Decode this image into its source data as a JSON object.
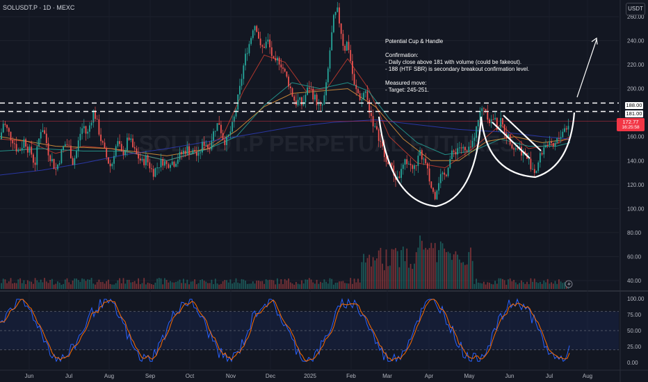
{
  "header": {
    "symbol_label": "SOLUSDT.P · 1D · MEXC"
  },
  "currency": "USDT",
  "watermark": "SOLUSDT.P PERPETUAL FUTURES",
  "annotation": {
    "title": "Potential Cup & Handle",
    "lines": [
      "Confirmation:",
      "- Daily close above 181 with volume (could be fakeout).",
      "- 188 (HTF SBR) is secondary breakout confirmation level.",
      "",
      "Measured move:",
      "- Target: 245-251."
    ]
  },
  "price_tags": {
    "level_188": "188.00",
    "level_181": "181.00",
    "last_price": "172.77",
    "countdown": "16:25:58"
  },
  "chart_data": {
    "type": "line",
    "price_axis": {
      "ticks": [
        40,
        60,
        80,
        100,
        120,
        140,
        160,
        180,
        200,
        220,
        240,
        260
      ]
    },
    "price_axis_labels": [
      "40.00",
      "60.00",
      "80.00",
      "100.00",
      "120.00",
      "140.00",
      "160.00",
      "180.00",
      "200.00",
      "220.00",
      "240.00",
      "260.00"
    ],
    "time_axis_labels": [
      "Jun",
      "Jul",
      "Aug",
      "Sep",
      "Oct",
      "Nov",
      "Dec",
      "2025",
      "Feb",
      "Mar",
      "Apr",
      "May",
      "Jun",
      "Jul",
      "Aug"
    ],
    "horizontal_levels": [
      188,
      181
    ],
    "last_price": 172.77,
    "price_series": [
      [
        0,
        158
      ],
      [
        5,
        172
      ],
      [
        10,
        166
      ],
      [
        15,
        160
      ],
      [
        20,
        156
      ],
      [
        25,
        148
      ],
      [
        30,
        150
      ],
      [
        35,
        158
      ],
      [
        40,
        150
      ],
      [
        45,
        146
      ],
      [
        50,
        136
      ],
      [
        55,
        155
      ],
      [
        60,
        170
      ],
      [
        65,
        160
      ],
      [
        70,
        146
      ],
      [
        75,
        140
      ],
      [
        80,
        132
      ],
      [
        85,
        140
      ],
      [
        90,
        150
      ],
      [
        95,
        155
      ],
      [
        100,
        150
      ],
      [
        105,
        138
      ],
      [
        110,
        148
      ],
      [
        115,
        162
      ],
      [
        120,
        170
      ],
      [
        125,
        160
      ],
      [
        130,
        172
      ],
      [
        135,
        182
      ],
      [
        140,
        170
      ],
      [
        145,
        158
      ],
      [
        150,
        148
      ],
      [
        155,
        140
      ],
      [
        160,
        134
      ],
      [
        165,
        150
      ],
      [
        170,
        155
      ],
      [
        175,
        145
      ],
      [
        180,
        150
      ],
      [
        185,
        160
      ],
      [
        190,
        152
      ],
      [
        195,
        146
      ],
      [
        200,
        142
      ],
      [
        205,
        138
      ],
      [
        210,
        142
      ],
      [
        215,
        136
      ],
      [
        220,
        130
      ],
      [
        225,
        134
      ],
      [
        230,
        138
      ],
      [
        235,
        140
      ],
      [
        240,
        136
      ],
      [
        245,
        140
      ],
      [
        250,
        138
      ],
      [
        255,
        142
      ],
      [
        260,
        145
      ],
      [
        265,
        148
      ],
      [
        270,
        150
      ],
      [
        275,
        146
      ],
      [
        280,
        148
      ],
      [
        285,
        142
      ],
      [
        290,
        152
      ],
      [
        295,
        156
      ],
      [
        300,
        150
      ],
      [
        305,
        160
      ],
      [
        310,
        168
      ],
      [
        315,
        172
      ],
      [
        320,
        160
      ],
      [
        325,
        155
      ],
      [
        330,
        162
      ],
      [
        335,
        170
      ],
      [
        340,
        185
      ],
      [
        345,
        200
      ],
      [
        350,
        218
      ],
      [
        355,
        232
      ],
      [
        360,
        240
      ],
      [
        365,
        255
      ],
      [
        370,
        250
      ],
      [
        375,
        232
      ],
      [
        380,
        236
      ],
      [
        385,
        240
      ],
      [
        390,
        230
      ],
      [
        395,
        218
      ],
      [
        400,
        225
      ],
      [
        405,
        220
      ],
      [
        410,
        212
      ],
      [
        415,
        205
      ],
      [
        420,
        196
      ],
      [
        425,
        188
      ],
      [
        430,
        190
      ],
      [
        435,
        186
      ],
      [
        440,
        196
      ],
      [
        445,
        202
      ],
      [
        450,
        195
      ],
      [
        455,
        190
      ],
      [
        460,
        182
      ],
      [
        465,
        188
      ],
      [
        470,
        205
      ],
      [
        475,
        235
      ],
      [
        480,
        258
      ],
      [
        485,
        265
      ],
      [
        490,
        250
      ],
      [
        495,
        232
      ],
      [
        500,
        240
      ],
      [
        505,
        220
      ],
      [
        510,
        200
      ],
      [
        515,
        196
      ],
      [
        520,
        190
      ],
      [
        525,
        200
      ],
      [
        530,
        185
      ],
      [
        535,
        175
      ],
      [
        540,
        165
      ],
      [
        545,
        160
      ],
      [
        550,
        150
      ],
      [
        555,
        138
      ],
      [
        560,
        140
      ],
      [
        565,
        130
      ],
      [
        570,
        125
      ],
      [
        575,
        128
      ],
      [
        580,
        135
      ],
      [
        585,
        140
      ],
      [
        590,
        136
      ],
      [
        595,
        132
      ],
      [
        600,
        140
      ],
      [
        605,
        146
      ],
      [
        610,
        140
      ],
      [
        615,
        130
      ],
      [
        620,
        118
      ],
      [
        625,
        110
      ],
      [
        630,
        122
      ],
      [
        635,
        130
      ],
      [
        640,
        126
      ],
      [
        645,
        138
      ],
      [
        650,
        145
      ],
      [
        655,
        148
      ],
      [
        660,
        152
      ],
      [
        665,
        150
      ],
      [
        670,
        146
      ],
      [
        675,
        148
      ],
      [
        680,
        155
      ],
      [
        685,
        170
      ],
      [
        690,
        178
      ],
      [
        695,
        186
      ],
      [
        700,
        180
      ],
      [
        705,
        172
      ],
      [
        710,
        176
      ],
      [
        715,
        168
      ],
      [
        720,
        172
      ],
      [
        725,
        166
      ],
      [
        730,
        160
      ],
      [
        735,
        156
      ],
      [
        740,
        150
      ],
      [
        745,
        152
      ],
      [
        750,
        148
      ],
      [
        755,
        145
      ],
      [
        760,
        140
      ],
      [
        765,
        135
      ],
      [
        770,
        130
      ],
      [
        775,
        140
      ],
      [
        780,
        148
      ],
      [
        785,
        155
      ],
      [
        790,
        152
      ],
      [
        795,
        150
      ],
      [
        800,
        155
      ],
      [
        805,
        160
      ],
      [
        810,
        166
      ],
      [
        815,
        168
      ],
      [
        820,
        172.77
      ]
    ],
    "ma_series": [
      {
        "name": "",
        "color": "#cc3d2f",
        "values": [
          [
            0,
            158
          ],
          [
            40,
            156
          ],
          [
            80,
            146
          ],
          [
            120,
            152
          ],
          [
            160,
            150
          ],
          [
            200,
            145
          ],
          [
            240,
            140
          ],
          [
            280,
            146
          ],
          [
            320,
            160
          ],
          [
            350,
            198
          ],
          [
            380,
            228
          ],
          [
            410,
            222
          ],
          [
            440,
            198
          ],
          [
            470,
            200
          ],
          [
            500,
            225
          ],
          [
            530,
            200
          ],
          [
            560,
            160
          ],
          [
            600,
            138
          ],
          [
            640,
            134
          ],
          [
            680,
            150
          ],
          [
            720,
            170
          ],
          [
            760,
            150
          ],
          [
            800,
            154
          ],
          [
            820,
            160
          ]
        ]
      },
      {
        "name": "",
        "color": "#26a69a",
        "values": [
          [
            0,
            148
          ],
          [
            60,
            150
          ],
          [
            120,
            148
          ],
          [
            180,
            148
          ],
          [
            240,
            140
          ],
          [
            300,
            150
          ],
          [
            340,
            160
          ],
          [
            380,
            186
          ],
          [
            420,
            205
          ],
          [
            460,
            200
          ],
          [
            500,
            205
          ],
          [
            530,
            198
          ],
          [
            560,
            175
          ],
          [
            600,
            155
          ],
          [
            640,
            145
          ],
          [
            680,
            148
          ],
          [
            720,
            158
          ],
          [
            760,
            152
          ],
          [
            800,
            152
          ],
          [
            820,
            155
          ]
        ]
      },
      {
        "name": "",
        "color": "#e69a3c",
        "values": [
          [
            0,
            160
          ],
          [
            80,
            152
          ],
          [
            160,
            150
          ],
          [
            240,
            144
          ],
          [
            300,
            150
          ],
          [
            340,
            165
          ],
          [
            380,
            185
          ],
          [
            420,
            196
          ],
          [
            460,
            198
          ],
          [
            500,
            200
          ],
          [
            540,
            185
          ],
          [
            580,
            158
          ],
          [
            620,
            140
          ],
          [
            660,
            140
          ],
          [
            700,
            156
          ],
          [
            740,
            160
          ],
          [
            780,
            155
          ],
          [
            820,
            158
          ]
        ]
      },
      {
        "name": "",
        "color": "#2f3dbb",
        "values": [
          [
            0,
            128
          ],
          [
            60,
            132
          ],
          [
            120,
            138
          ],
          [
            180,
            145
          ],
          [
            240,
            150
          ],
          [
            300,
            156
          ],
          [
            360,
            162
          ],
          [
            420,
            168
          ],
          [
            480,
            172
          ],
          [
            540,
            174
          ],
          [
            600,
            170
          ],
          [
            660,
            166
          ],
          [
            720,
            164
          ],
          [
            780,
            160
          ],
          [
            820,
            158
          ]
        ]
      }
    ],
    "volume_axis_note": "volume histogram (no numeric scale shown)",
    "oscillator": {
      "type": "line",
      "ticks": [
        0,
        25,
        50,
        75,
        100
      ],
      "tick_labels": [
        "0.00",
        "25.00",
        "50.00",
        "75.00",
        "100.00"
      ],
      "levels": [
        20,
        50,
        80
      ]
    }
  }
}
